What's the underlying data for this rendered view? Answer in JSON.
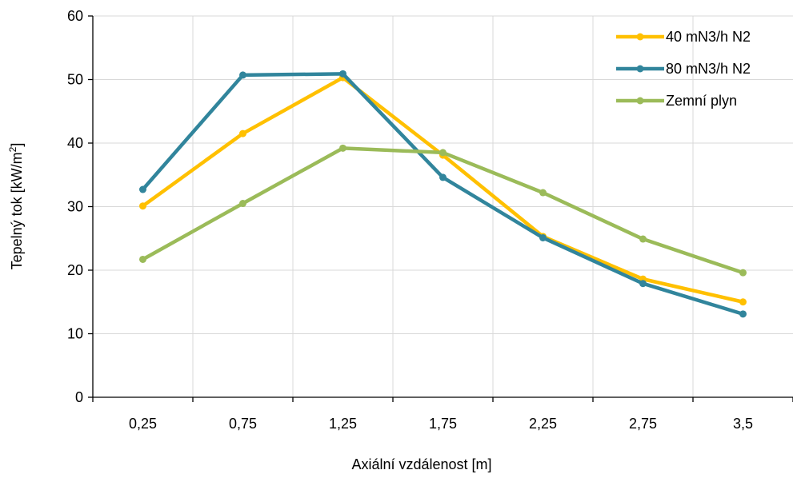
{
  "chart_data": {
    "type": "line",
    "categories": [
      "0,25",
      "0,75",
      "1,25",
      "1,75",
      "2,25",
      "2,75",
      "3,5"
    ],
    "series": [
      {
        "name": "40 mN3/h N2",
        "color": "#FFC000",
        "values": [
          30.1,
          41.5,
          50.3,
          38.1,
          25.3,
          18.6,
          15.0
        ]
      },
      {
        "name": "80 mN3/h N2",
        "color": "#31859C",
        "values": [
          32.7,
          50.7,
          50.9,
          34.6,
          25.1,
          17.9,
          13.1
        ]
      },
      {
        "name": "Zemní plyn",
        "color": "#9BBB59",
        "values": [
          21.7,
          30.5,
          39.2,
          38.5,
          32.2,
          24.9,
          19.6
        ]
      }
    ],
    "xlabel": "Axiální vzdálenost [m]",
    "ylabel_main": "Tepelný tok [kW/m",
    "ylabel_sup": "2",
    "ylabel_end": "]",
    "ylim": [
      0,
      60
    ],
    "yticks": [
      0,
      10,
      20,
      30,
      40,
      50,
      60
    ],
    "grid": true,
    "legend_position": "top-right"
  }
}
